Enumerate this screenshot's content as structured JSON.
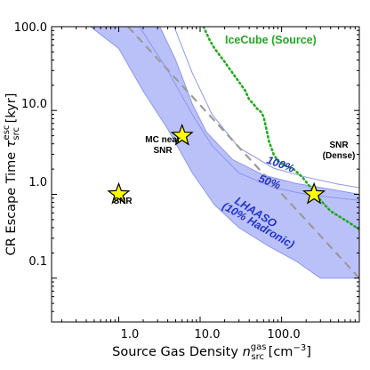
{
  "colors": {
    "band_fill": "#aeb6f7",
    "band_edge": "#8c97f0",
    "blue_text": "#2233cc",
    "icecube": "#22aa22",
    "dashed": "#9a9a9a",
    "star_fill": "#ffff00",
    "star_edge": "#000000"
  },
  "chart_data": {
    "type": "scatter",
    "xscale": "log",
    "yscale": "log",
    "xlim": [
      0.15,
      900
    ],
    "ylim": [
      0.03,
      100
    ],
    "xlabel_main": "Source Gas Density ",
    "xlabel_sym": "n",
    "xlabel_sub": "src",
    "xlabel_sup": "gas",
    "xlabel_unit_pre": " [cm",
    "xlabel_unit_exp": "−3",
    "xlabel_unit_post": "]",
    "ylabel_main": "CR Escape Time ",
    "ylabel_sym": "τ",
    "ylabel_sub": "src",
    "ylabel_sup": "esc",
    "ylabel_unit": " [kyr]",
    "xticks": [
      {
        "value": 1,
        "label": "1.0"
      },
      {
        "value": 10,
        "label": "10.0"
      },
      {
        "value": 100,
        "label": "100.0"
      }
    ],
    "yticks": [
      {
        "value": 0.1,
        "label": "0.1"
      },
      {
        "value": 1,
        "label": "1.0"
      },
      {
        "value": 10,
        "label": "10.0"
      },
      {
        "value": 100,
        "label": "100.0"
      }
    ],
    "lhaaso_band": {
      "upper": [
        [
          3.2,
          100
        ],
        [
          5,
          40
        ],
        [
          8,
          12
        ],
        [
          12,
          5.5
        ],
        [
          25,
          2.6
        ],
        [
          60,
          1.7
        ],
        [
          150,
          1.35
        ],
        [
          400,
          1.15
        ],
        [
          900,
          1.0
        ]
      ],
      "lower": [
        [
          0.45,
          100
        ],
        [
          1,
          55
        ],
        [
          2,
          17
        ],
        [
          4,
          6
        ],
        [
          8,
          1.8
        ],
        [
          15,
          0.75
        ],
        [
          30,
          0.4
        ],
        [
          70,
          0.24
        ],
        [
          150,
          0.16
        ],
        [
          300,
          0.1
        ],
        [
          900,
          0.1
        ]
      ]
    },
    "line_100": [
      [
        4.8,
        100
      ],
      [
        8,
        28
      ],
      [
        14,
        9
      ],
      [
        30,
        3.6
      ],
      [
        80,
        2.05
      ],
      [
        200,
        1.6
      ],
      [
        500,
        1.32
      ],
      [
        900,
        1.2
      ]
    ],
    "line_50": [
      [
        1.8,
        100
      ],
      [
        4,
        30
      ],
      [
        8,
        9
      ],
      [
        14,
        3.8
      ],
      [
        30,
        1.8
      ],
      [
        80,
        1.2
      ],
      [
        200,
        1.0
      ],
      [
        500,
        0.9
      ],
      [
        900,
        0.85
      ]
    ],
    "icecube_line": [
      [
        11,
        100
      ],
      [
        13,
        70
      ],
      [
        15,
        55
      ],
      [
        20,
        38
      ],
      [
        25,
        28
      ],
      [
        30,
        22
      ],
      [
        36,
        17
      ],
      [
        40,
        13.5
      ],
      [
        45,
        12
      ],
      [
        50,
        10.5
      ],
      [
        55,
        9.8
      ],
      [
        60,
        8.5
      ],
      [
        65,
        6
      ],
      [
        70,
        4.3
      ],
      [
        80,
        3.0
      ],
      [
        90,
        2.5
      ],
      [
        110,
        2.2
      ],
      [
        140,
        2.0
      ],
      [
        180,
        1.6
      ],
      [
        220,
        1.25
      ],
      [
        260,
        1.05
      ],
      [
        300,
        0.85
      ],
      [
        400,
        0.63
      ],
      [
        550,
        0.52
      ],
      [
        700,
        0.45
      ],
      [
        900,
        0.38
      ]
    ],
    "dashed_line": [
      [
        1.3,
        100
      ],
      [
        900,
        0.1
      ]
    ],
    "points": [
      {
        "x": 1.0,
        "y": 1.0,
        "label": "SNR"
      },
      {
        "x": 6.0,
        "y": 5.0,
        "label_line1": "MC near",
        "label_line2": "SNR"
      },
      {
        "x": 250,
        "y": 1.0,
        "label_line1": "SNR",
        "label_line2": "(Dense)"
      }
    ],
    "annotations": {
      "icecube": "IceCube (Source)",
      "pct100": "100%",
      "pct50": "50%",
      "lhaaso1": "LHAASO",
      "lhaaso2": "(10% Hadronic)"
    }
  }
}
